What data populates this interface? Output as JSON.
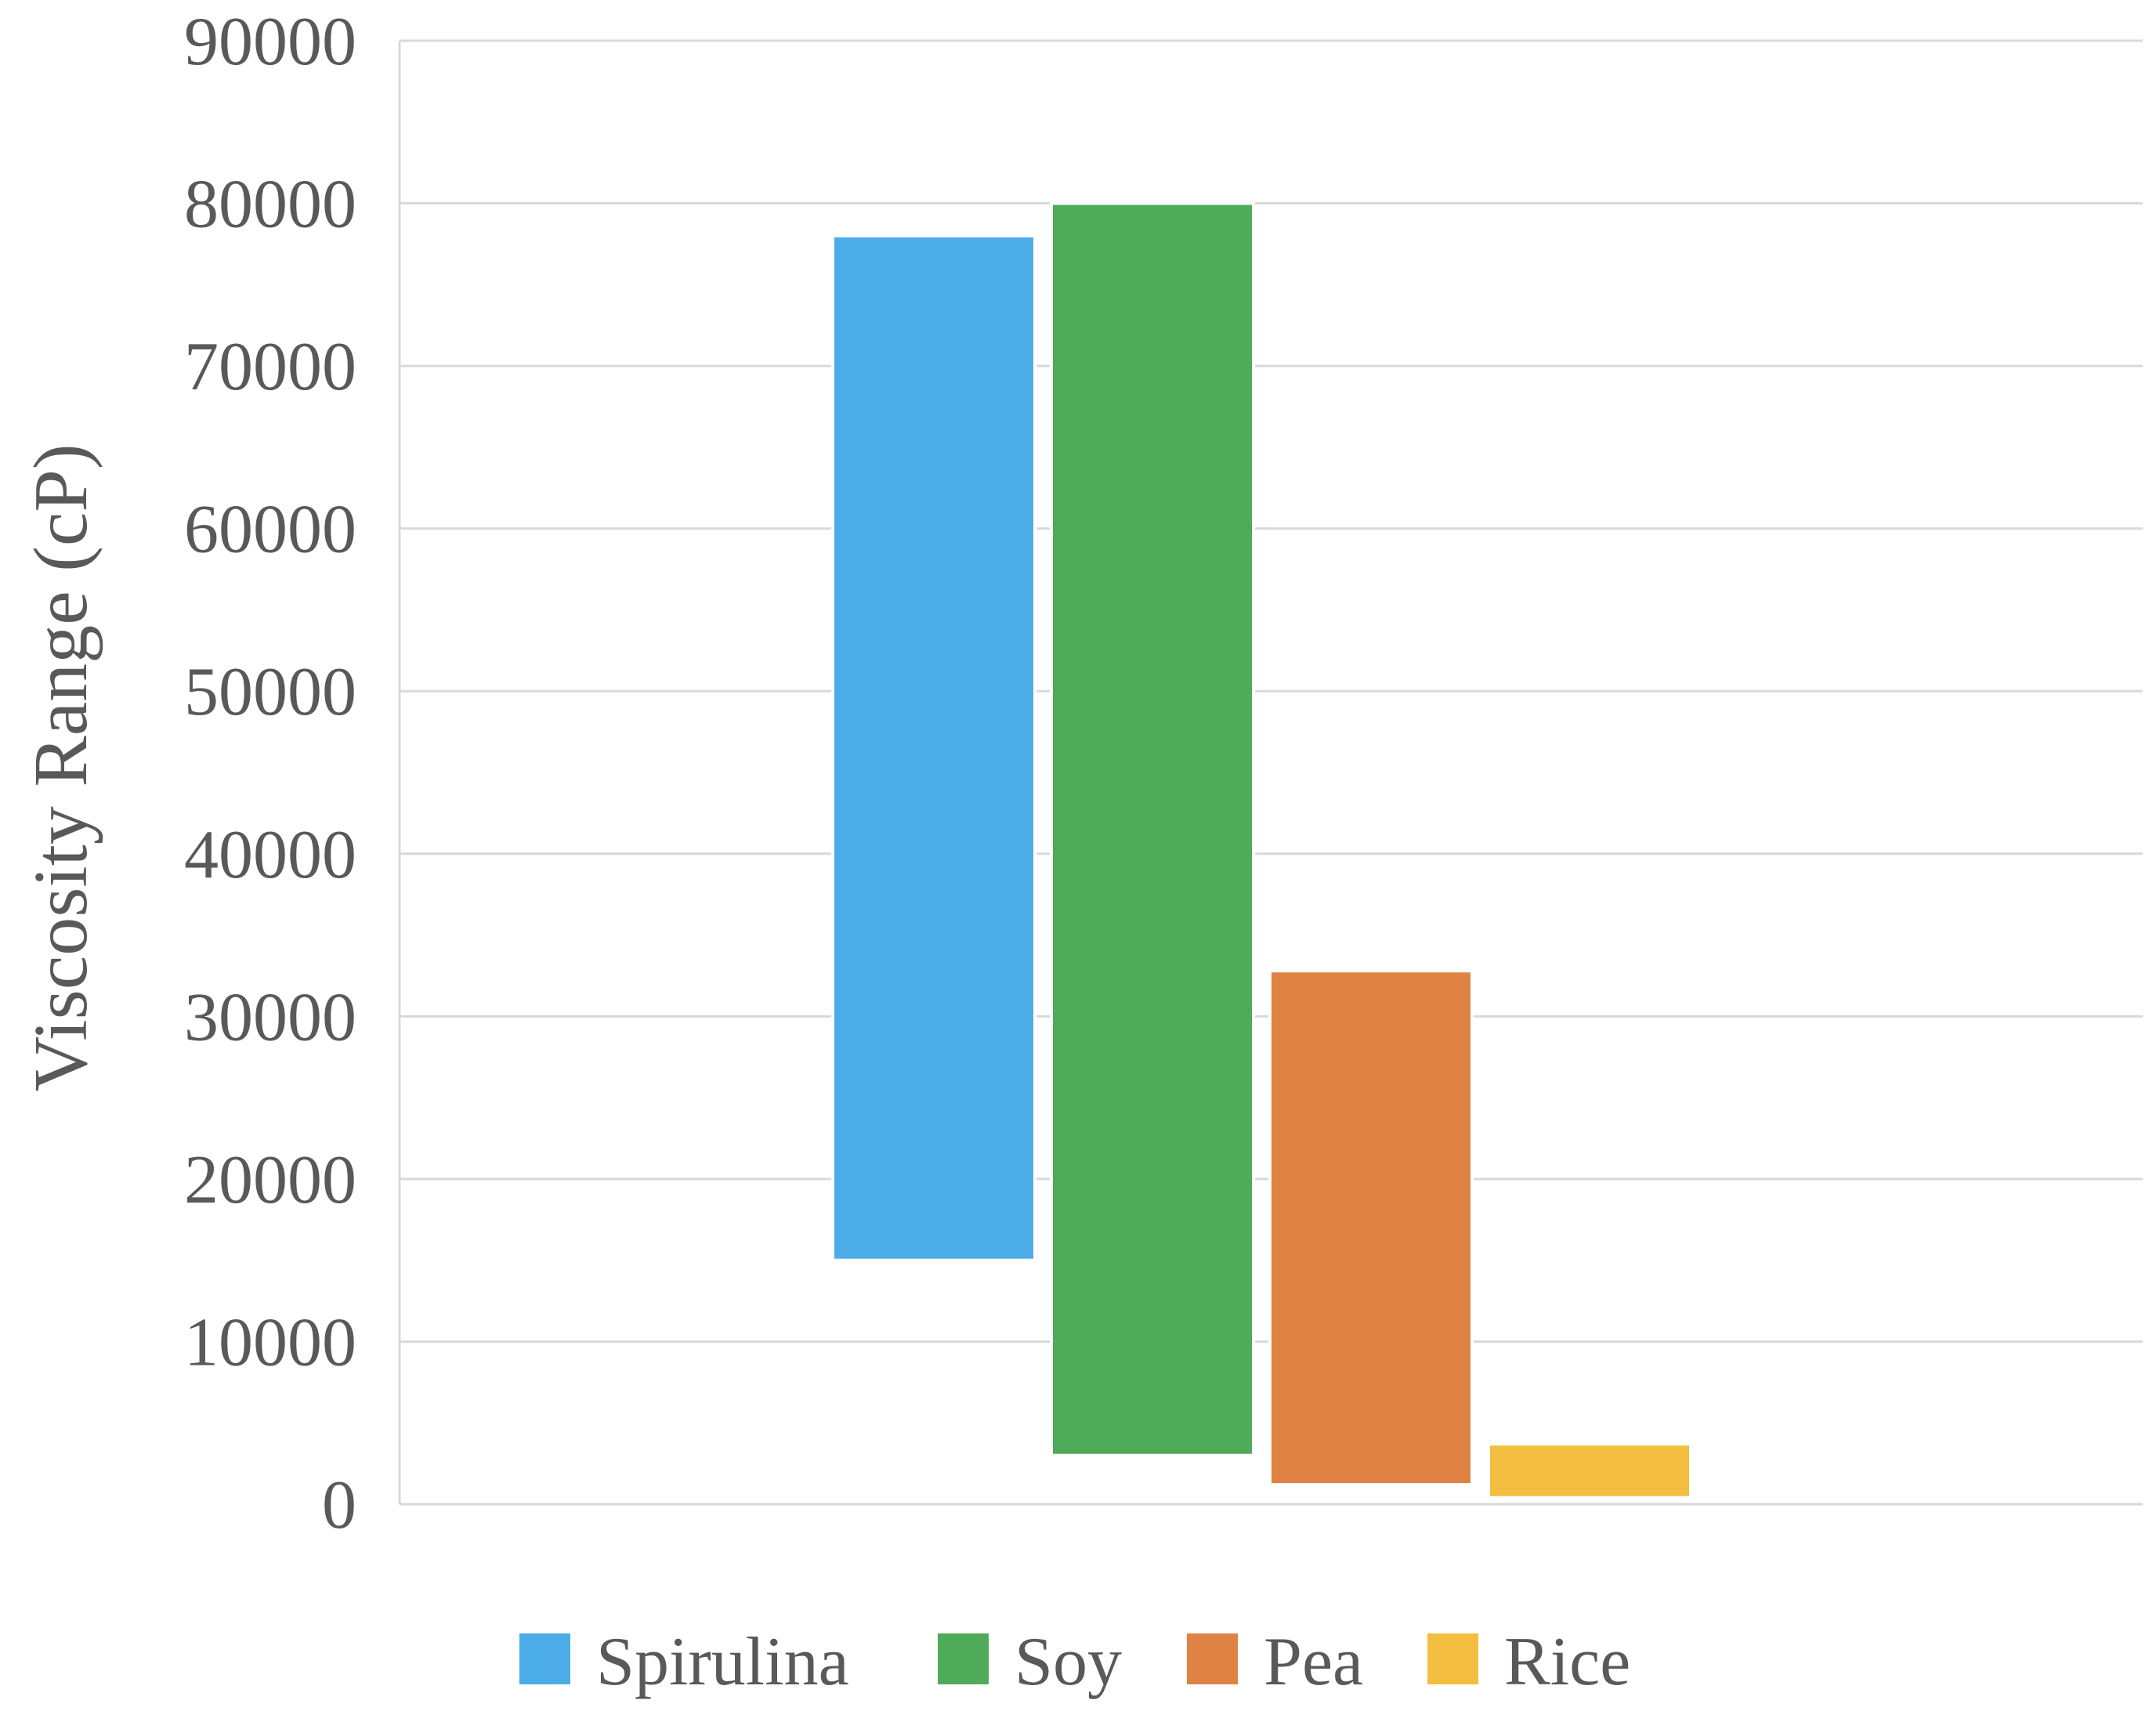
{
  "chart_data": {
    "type": "bar",
    "subtype": "floating-range",
    "title": "",
    "xlabel": "",
    "ylabel": "Viscosity Range (cP)",
    "ylim": [
      0,
      90000
    ],
    "yticks": [
      0,
      10000,
      20000,
      30000,
      40000,
      50000,
      60000,
      70000,
      80000,
      90000
    ],
    "grid": true,
    "legend_position": "bottom",
    "series": [
      {
        "name": "Spirulina",
        "low": 15000,
        "high": 78000,
        "color": "#4BACE8"
      },
      {
        "name": "Soy",
        "low": 3000,
        "high": 80000,
        "color": "#4FAA5A"
      },
      {
        "name": "Pea",
        "low": 1200,
        "high": 32800,
        "color": "#DF8344"
      },
      {
        "name": "Rice",
        "low": 400,
        "high": 3700,
        "color": "#F3BE3F"
      }
    ]
  }
}
